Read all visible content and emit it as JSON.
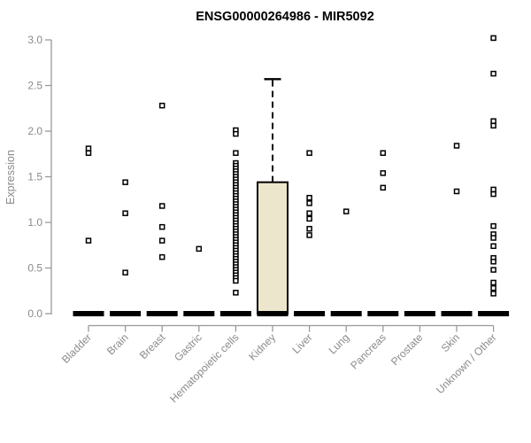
{
  "chart_data": {
    "type": "boxplot",
    "title": "ENSG00000264986 - MIR5092",
    "ylabel": "Expression",
    "xlabel": "",
    "ylim": [
      0.0,
      3.05
    ],
    "yticks": [
      0.0,
      0.5,
      1.0,
      1.5,
      2.0,
      2.5,
      3.0
    ],
    "grid": false,
    "legend": false,
    "colors": {
      "box_fill": "#ECE7CC",
      "box_stroke": "#000000",
      "median": "#000000",
      "point_stroke": "#000000",
      "point_fill": "#ffffff",
      "axis": "#999999",
      "tick_label": "#8a8a8a",
      "title": "#000000"
    },
    "categories": [
      "Bladder",
      "Brain",
      "Breast",
      "Gastric",
      "Hematopoietic cells",
      "Kidney",
      "Liver",
      "Lung",
      "Pancreas",
      "Prostate",
      "Skin",
      "Unknown / Other"
    ],
    "series": [
      {
        "category": "Bladder",
        "box": {
          "q1": 0,
          "median": 0,
          "q3": 0,
          "whisker_low": 0,
          "whisker_high": 0
        },
        "points": [
          1.81,
          1.76,
          0.8
        ]
      },
      {
        "category": "Brain",
        "box": {
          "q1": 0,
          "median": 0,
          "q3": 0,
          "whisker_low": 0,
          "whisker_high": 0
        },
        "points": [
          1.44,
          1.1,
          0.45
        ]
      },
      {
        "category": "Breast",
        "box": {
          "q1": 0,
          "median": 0,
          "q3": 0,
          "whisker_low": 0,
          "whisker_high": 0
        },
        "points": [
          2.28,
          1.18,
          0.95,
          0.8,
          0.62
        ]
      },
      {
        "category": "Gastric",
        "box": {
          "q1": 0,
          "median": 0,
          "q3": 0,
          "whisker_low": 0,
          "whisker_high": 0
        },
        "points": [
          0.71
        ]
      },
      {
        "category": "Hematopoietic cells",
        "box": {
          "q1": 0,
          "median": 0,
          "q3": 0,
          "whisker_low": 0,
          "whisker_high": 0
        },
        "points": [
          2.01,
          1.97,
          1.76,
          1.65,
          1.62,
          1.59,
          1.56,
          1.53,
          1.5,
          1.47,
          1.44,
          1.41,
          1.38,
          1.35,
          1.32,
          1.29,
          1.26,
          1.23,
          1.2,
          1.17,
          1.14,
          1.11,
          1.08,
          1.05,
          1.02,
          0.99,
          0.96,
          0.93,
          0.9,
          0.87,
          0.84,
          0.81,
          0.78,
          0.75,
          0.72,
          0.69,
          0.66,
          0.63,
          0.6,
          0.57,
          0.54,
          0.51,
          0.48,
          0.45,
          0.42,
          0.39,
          0.36,
          0.23
        ]
      },
      {
        "category": "Kidney",
        "box": {
          "q1": 0,
          "median": 0,
          "q3": 1.44,
          "whisker_low": 0,
          "whisker_high": 2.57
        },
        "points": []
      },
      {
        "category": "Liver",
        "box": {
          "q1": 0,
          "median": 0,
          "q3": 0,
          "whisker_low": 0,
          "whisker_high": 0
        },
        "points": [
          1.76,
          1.27,
          1.21,
          1.1,
          1.04,
          0.93,
          0.86
        ]
      },
      {
        "category": "Lung",
        "box": {
          "q1": 0,
          "median": 0,
          "q3": 0,
          "whisker_low": 0,
          "whisker_high": 0
        },
        "points": [
          1.12
        ]
      },
      {
        "category": "Pancreas",
        "box": {
          "q1": 0,
          "median": 0,
          "q3": 0,
          "whisker_low": 0,
          "whisker_high": 0
        },
        "points": [
          1.76,
          1.54,
          1.38
        ]
      },
      {
        "category": "Prostate",
        "box": {
          "q1": 0,
          "median": 0,
          "q3": 0,
          "whisker_low": 0,
          "whisker_high": 0
        },
        "points": []
      },
      {
        "category": "Skin",
        "box": {
          "q1": 0,
          "median": 0,
          "q3": 0,
          "whisker_low": 0,
          "whisker_high": 0
        },
        "points": [
          1.84,
          1.34
        ]
      },
      {
        "category": "Unknown / Other",
        "box": {
          "q1": 0,
          "median": 0,
          "q3": 0,
          "whisker_low": 0,
          "whisker_high": 0
        },
        "points": [
          3.02,
          2.63,
          2.11,
          2.06,
          1.36,
          1.31,
          0.96,
          0.87,
          0.83,
          0.74,
          0.61,
          0.57,
          0.48,
          0.34,
          0.28,
          0.22
        ]
      }
    ]
  }
}
